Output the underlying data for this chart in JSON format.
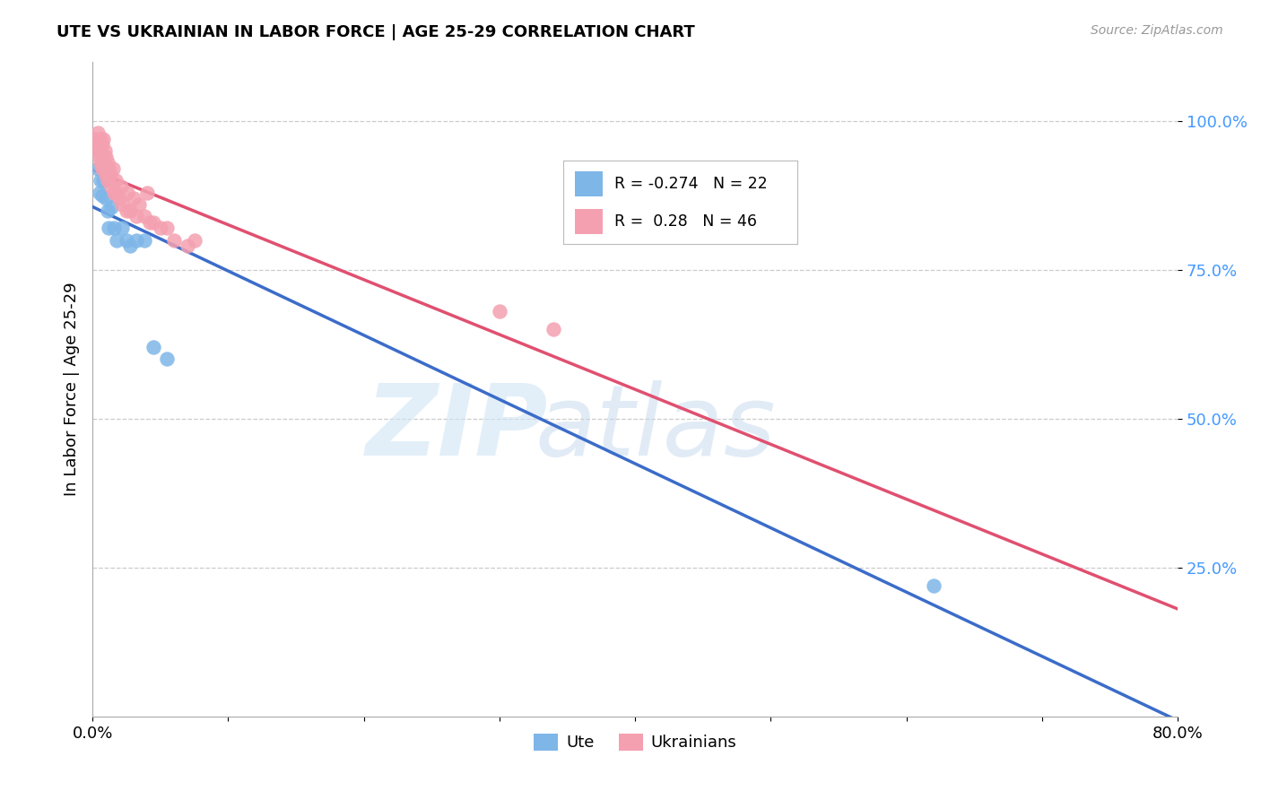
{
  "title": "UTE VS UKRAINIAN IN LABOR FORCE | AGE 25-29 CORRELATION CHART",
  "source": "Source: ZipAtlas.com",
  "ylabel": "In Labor Force | Age 25-29",
  "xlim": [
    0.0,
    0.8
  ],
  "ylim": [
    0.0,
    1.1
  ],
  "yticks": [
    0.25,
    0.5,
    0.75,
    1.0
  ],
  "ytick_labels": [
    "25.0%",
    "50.0%",
    "75.0%",
    "100.0%"
  ],
  "xticks": [
    0.0,
    0.1,
    0.2,
    0.3,
    0.4,
    0.5,
    0.6,
    0.7,
    0.8
  ],
  "xtick_labels": [
    "0.0%",
    "",
    "",
    "",
    "",
    "",
    "",
    "",
    "80.0%"
  ],
  "ute_color": "#7EB6E8",
  "ukrainian_color": "#F4A0B0",
  "ute_line_color": "#3B6CC9",
  "ukrainian_line_color": "#E05070",
  "ute_R": -0.274,
  "ute_N": 22,
  "ukrainian_R": 0.28,
  "ukrainian_N": 46,
  "ute_points_x": [
    0.003,
    0.004,
    0.005,
    0.006,
    0.006,
    0.007,
    0.008,
    0.009,
    0.01,
    0.011,
    0.012,
    0.014,
    0.016,
    0.018,
    0.022,
    0.025,
    0.028,
    0.032,
    0.038,
    0.045,
    0.055,
    0.62
  ],
  "ute_points_y": [
    0.955,
    0.92,
    0.88,
    0.945,
    0.9,
    0.875,
    0.9,
    0.92,
    0.87,
    0.85,
    0.82,
    0.855,
    0.82,
    0.8,
    0.82,
    0.8,
    0.79,
    0.8,
    0.8,
    0.62,
    0.6,
    0.22
  ],
  "ukr_points_x": [
    0.002,
    0.003,
    0.004,
    0.004,
    0.005,
    0.005,
    0.005,
    0.006,
    0.006,
    0.007,
    0.007,
    0.008,
    0.008,
    0.009,
    0.009,
    0.01,
    0.01,
    0.011,
    0.011,
    0.012,
    0.013,
    0.014,
    0.015,
    0.016,
    0.017,
    0.018,
    0.02,
    0.021,
    0.022,
    0.025,
    0.026,
    0.028,
    0.03,
    0.032,
    0.034,
    0.038,
    0.04,
    0.042,
    0.045,
    0.05,
    0.055,
    0.06,
    0.07,
    0.075,
    0.3,
    0.34
  ],
  "ukr_points_y": [
    0.97,
    0.96,
    0.98,
    0.95,
    0.97,
    0.95,
    0.94,
    0.97,
    0.93,
    0.96,
    0.92,
    0.97,
    0.93,
    0.95,
    0.92,
    0.94,
    0.91,
    0.93,
    0.9,
    0.92,
    0.91,
    0.89,
    0.92,
    0.88,
    0.9,
    0.88,
    0.87,
    0.89,
    0.86,
    0.85,
    0.88,
    0.85,
    0.87,
    0.84,
    0.86,
    0.84,
    0.88,
    0.83,
    0.83,
    0.82,
    0.82,
    0.8,
    0.79,
    0.8,
    0.68,
    0.65
  ]
}
